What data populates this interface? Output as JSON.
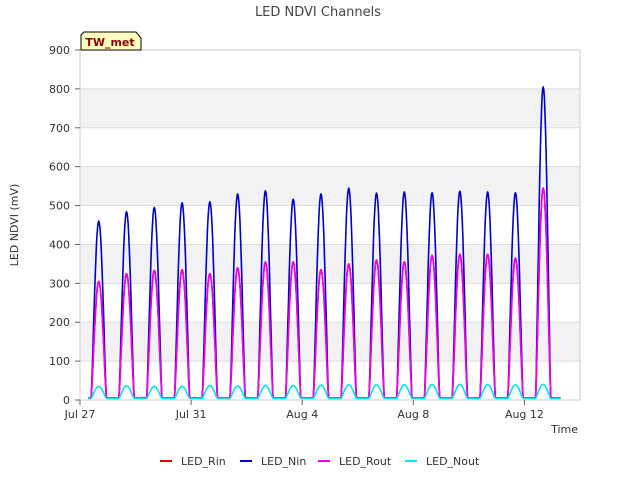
{
  "chart_data": {
    "type": "line",
    "title": "LED NDVI Channels",
    "xlabel": "Time",
    "ylabel": "LED NDVI (mV)",
    "badge": "TW_met",
    "ylim": [
      0,
      900
    ],
    "yticks": [
      0,
      100,
      200,
      300,
      400,
      500,
      600,
      700,
      800,
      900
    ],
    "xlim": [
      "2023-07-27",
      "2023-08-14"
    ],
    "xticks": [
      {
        "date": "2023-07-27",
        "label": "Jul 27"
      },
      {
        "date": "2023-07-31",
        "label": "Jul 31"
      },
      {
        "date": "2023-08-04",
        "label": "Aug 4"
      },
      {
        "date": "2023-08-08",
        "label": "Aug 8"
      },
      {
        "date": "2023-08-12",
        "label": "Aug 12"
      }
    ],
    "grid": true,
    "legend_position": "bottom",
    "days": [
      "2023-07-27",
      "2023-07-28",
      "2023-07-29",
      "2023-07-30",
      "2023-07-31",
      "2023-08-01",
      "2023-08-02",
      "2023-08-03",
      "2023-08-04",
      "2023-08-05",
      "2023-08-06",
      "2023-08-07",
      "2023-08-08",
      "2023-08-09",
      "2023-08-10",
      "2023-08-11",
      "2023-08-12",
      "2023-08-13"
    ],
    "series": [
      {
        "name": "LED_Rin",
        "color": "#dd0000",
        "daily_peak": [
          305,
          325,
          333,
          335,
          325,
          340,
          355,
          355,
          335,
          350,
          360,
          355,
          372,
          375,
          375,
          365,
          545,
          0
        ],
        "night_value": 5
      },
      {
        "name": "LED_Nin",
        "color": "#0000cc",
        "daily_peak": [
          460,
          484,
          495,
          507,
          510,
          530,
          538,
          516,
          530,
          545,
          532,
          535,
          533,
          537,
          535,
          533,
          805,
          0
        ],
        "night_value": 5
      },
      {
        "name": "LED_Rout",
        "color": "#ee00ee",
        "daily_peak": [
          305,
          325,
          333,
          335,
          325,
          340,
          355,
          355,
          335,
          350,
          360,
          355,
          372,
          375,
          375,
          365,
          545,
          0
        ],
        "night_value": 5
      },
      {
        "name": "LED_Nout",
        "color": "#00e5ee",
        "daily_peak": [
          35,
          36,
          35,
          35,
          37,
          36,
          37,
          37,
          38,
          39,
          39,
          39,
          40,
          40,
          40,
          39,
          40,
          0
        ],
        "night_value": 4
      }
    ]
  }
}
